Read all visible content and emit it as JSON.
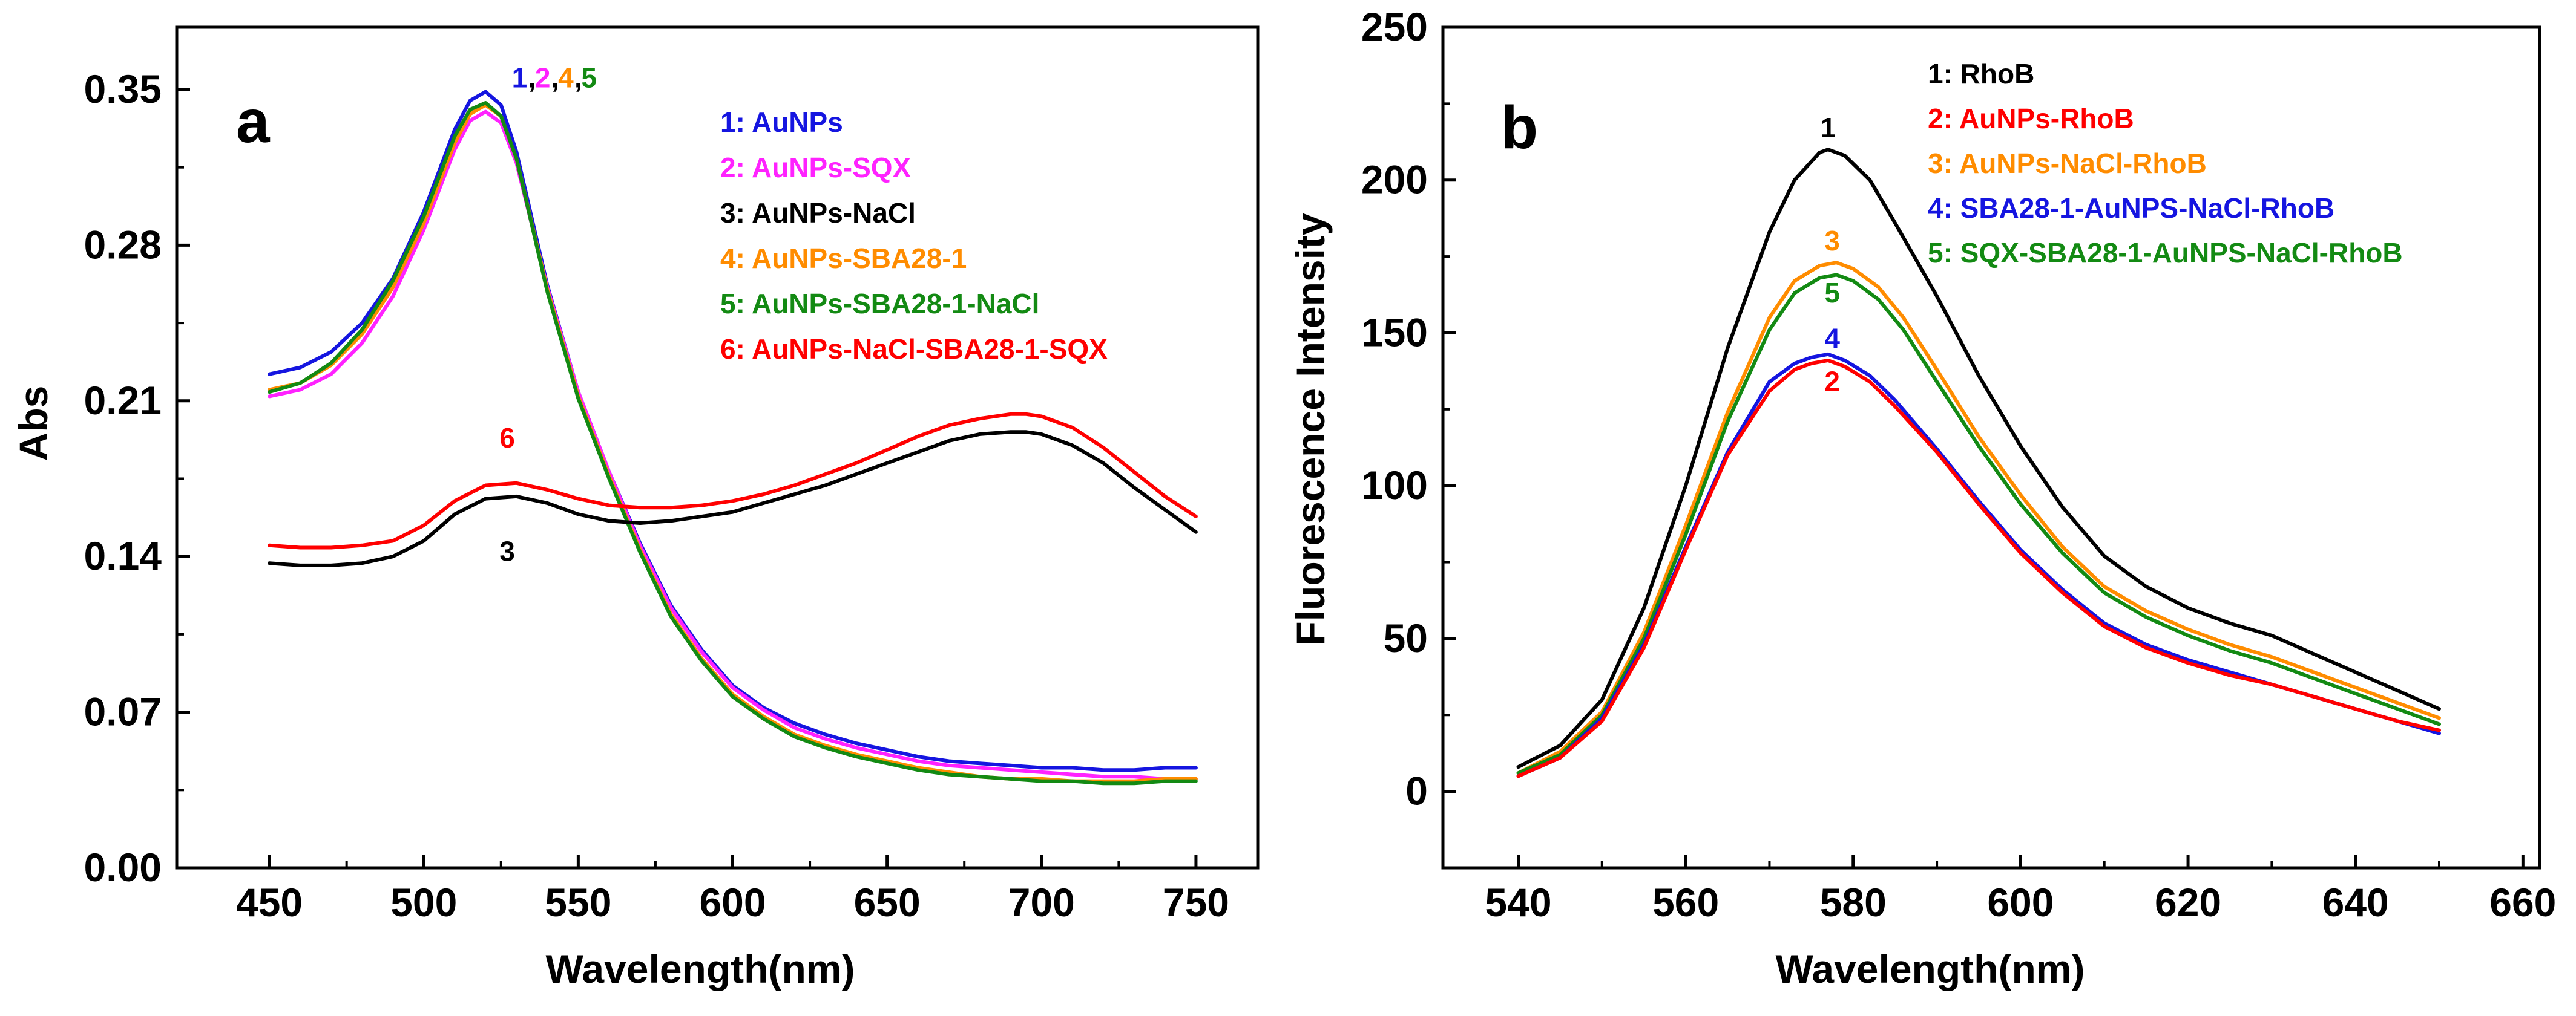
{
  "chart_data": [
    {
      "panel": "a",
      "type": "line",
      "xlabel": "Wavelength(nm)",
      "ylabel": "Abs",
      "xlim": [
        420,
        770
      ],
      "ylim": [
        0.0,
        0.378
      ],
      "xticks": [
        450,
        500,
        550,
        600,
        650,
        700,
        750
      ],
      "yticks": [
        0.0,
        0.07,
        0.14,
        0.21,
        0.28,
        0.35
      ],
      "ytick_labels": [
        "0.00",
        "0.07",
        "0.14",
        "0.21",
        "0.28",
        "0.35"
      ],
      "legend": [
        {
          "text": "1: AuNPs",
          "color": "#1515e0"
        },
        {
          "text": "2: AuNPs-SQX",
          "color": "#ff22ff"
        },
        {
          "text": "3: AuNPs-NaCl",
          "color": "#000000"
        },
        {
          "text": "4: AuNPs-SBA28-1",
          "color": "#ff8c00"
        },
        {
          "text": "5: AuNPs-SBA28-1-NaCl",
          "color": "#138a13"
        },
        {
          "text": "6: AuNPs-NaCl-SBA28-1-SQX",
          "color": "#ff0000"
        }
      ],
      "curve_labels": [
        {
          "text": "1",
          "color": "#1515e0",
          "x": 531,
          "y": 0.351
        },
        {
          "text": ",",
          "color": "#000000",
          "x": 535,
          "y": 0.351
        },
        {
          "text": "2",
          "color": "#ff22ff",
          "x": 538.5,
          "y": 0.351
        },
        {
          "text": ",",
          "color": "#000000",
          "x": 542.5,
          "y": 0.351
        },
        {
          "text": "4",
          "color": "#ff8c00",
          "x": 546,
          "y": 0.351
        },
        {
          "text": ",",
          "color": "#000000",
          "x": 550,
          "y": 0.351
        },
        {
          "text": "5",
          "color": "#138a13",
          "x": 553.5,
          "y": 0.351
        },
        {
          "text": "6",
          "color": "#ff0000",
          "x": 527,
          "y": 0.189
        },
        {
          "text": "3",
          "color": "#000000",
          "x": 527,
          "y": 0.138
        }
      ],
      "series": [
        {
          "name": "1: AuNPs",
          "color": "#1515e0",
          "x": [
            450,
            460,
            470,
            480,
            490,
            500,
            510,
            515,
            520,
            525,
            530,
            540,
            550,
            560,
            570,
            580,
            590,
            600,
            610,
            620,
            630,
            640,
            650,
            660,
            670,
            680,
            690,
            700,
            710,
            720,
            730,
            740,
            750
          ],
          "y": [
            0.222,
            0.225,
            0.232,
            0.245,
            0.265,
            0.295,
            0.332,
            0.345,
            0.349,
            0.343,
            0.322,
            0.262,
            0.214,
            0.178,
            0.146,
            0.118,
            0.098,
            0.082,
            0.072,
            0.065,
            0.06,
            0.056,
            0.053,
            0.05,
            0.048,
            0.047,
            0.046,
            0.045,
            0.045,
            0.044,
            0.044,
            0.045,
            0.045
          ]
        },
        {
          "name": "2: AuNPs-SQX",
          "color": "#ff22ff",
          "x": [
            450,
            460,
            470,
            480,
            490,
            500,
            510,
            515,
            520,
            525,
            530,
            540,
            550,
            560,
            570,
            580,
            590,
            600,
            610,
            620,
            630,
            640,
            650,
            660,
            670,
            680,
            690,
            700,
            710,
            720,
            730,
            740,
            750
          ],
          "y": [
            0.212,
            0.215,
            0.222,
            0.236,
            0.257,
            0.287,
            0.323,
            0.336,
            0.34,
            0.335,
            0.317,
            0.261,
            0.214,
            0.178,
            0.145,
            0.117,
            0.097,
            0.081,
            0.071,
            0.063,
            0.058,
            0.054,
            0.051,
            0.048,
            0.046,
            0.045,
            0.044,
            0.043,
            0.042,
            0.041,
            0.041,
            0.04,
            0.04
          ]
        },
        {
          "name": "4: AuNPs-SBA28-1",
          "color": "#ff8c00",
          "x": [
            450,
            460,
            470,
            480,
            490,
            500,
            510,
            515,
            520,
            525,
            530,
            540,
            550,
            560,
            570,
            580,
            590,
            600,
            610,
            620,
            630,
            640,
            650,
            660,
            670,
            680,
            690,
            700,
            710,
            720,
            730,
            740,
            750
          ],
          "y": [
            0.215,
            0.218,
            0.226,
            0.24,
            0.261,
            0.29,
            0.326,
            0.339,
            0.343,
            0.338,
            0.319,
            0.26,
            0.212,
            0.176,
            0.143,
            0.114,
            0.094,
            0.078,
            0.068,
            0.06,
            0.055,
            0.051,
            0.048,
            0.045,
            0.043,
            0.041,
            0.04,
            0.04,
            0.039,
            0.039,
            0.039,
            0.04,
            0.04
          ]
        },
        {
          "name": "5: AuNPs-SBA28-1-NaCl",
          "color": "#138a13",
          "x": [
            450,
            460,
            470,
            480,
            490,
            500,
            510,
            515,
            520,
            525,
            530,
            540,
            550,
            560,
            570,
            580,
            590,
            600,
            610,
            620,
            630,
            640,
            650,
            660,
            670,
            680,
            690,
            700,
            710,
            720,
            730,
            740,
            750
          ],
          "y": [
            0.214,
            0.218,
            0.227,
            0.242,
            0.264,
            0.293,
            0.329,
            0.341,
            0.344,
            0.338,
            0.319,
            0.259,
            0.211,
            0.175,
            0.142,
            0.113,
            0.093,
            0.077,
            0.067,
            0.059,
            0.054,
            0.05,
            0.047,
            0.044,
            0.042,
            0.041,
            0.04,
            0.039,
            0.039,
            0.038,
            0.038,
            0.039,
            0.039
          ]
        },
        {
          "name": "6: AuNPs-NaCl-SBA28-1-SQX",
          "color": "#ff0000",
          "x": [
            450,
            460,
            470,
            480,
            490,
            500,
            510,
            520,
            530,
            540,
            550,
            560,
            570,
            580,
            590,
            600,
            610,
            620,
            630,
            640,
            650,
            660,
            670,
            680,
            690,
            695,
            700,
            710,
            720,
            730,
            740,
            750
          ],
          "y": [
            0.145,
            0.144,
            0.144,
            0.145,
            0.147,
            0.154,
            0.165,
            0.172,
            0.173,
            0.17,
            0.166,
            0.163,
            0.162,
            0.162,
            0.163,
            0.165,
            0.168,
            0.172,
            0.177,
            0.182,
            0.188,
            0.194,
            0.199,
            0.202,
            0.204,
            0.204,
            0.203,
            0.198,
            0.189,
            0.178,
            0.167,
            0.158
          ]
        },
        {
          "name": "3: AuNPs-NaCl",
          "color": "#000000",
          "x": [
            450,
            460,
            470,
            480,
            490,
            500,
            510,
            520,
            530,
            540,
            550,
            560,
            570,
            580,
            590,
            600,
            610,
            620,
            630,
            640,
            650,
            660,
            670,
            680,
            690,
            695,
            700,
            710,
            720,
            730,
            740,
            750
          ],
          "y": [
            0.137,
            0.136,
            0.136,
            0.137,
            0.14,
            0.147,
            0.159,
            0.166,
            0.167,
            0.164,
            0.159,
            0.156,
            0.155,
            0.156,
            0.158,
            0.16,
            0.164,
            0.168,
            0.172,
            0.177,
            0.182,
            0.187,
            0.192,
            0.195,
            0.196,
            0.196,
            0.195,
            0.19,
            0.182,
            0.171,
            0.161,
            0.151
          ]
        }
      ]
    },
    {
      "panel": "b",
      "type": "line",
      "xlabel": "Wavelength(nm)",
      "ylabel": "Fluorescence Intensity",
      "xlim": [
        531,
        662
      ],
      "ylim": [
        -25,
        250
      ],
      "xticks": [
        540,
        560,
        580,
        600,
        620,
        640,
        660
      ],
      "yticks": [
        0,
        50,
        100,
        150,
        200,
        250
      ],
      "legend": [
        {
          "text": "1: RhoB",
          "color": "#000000"
        },
        {
          "text": "2: AuNPs-RhoB",
          "color": "#ff0000"
        },
        {
          "text": "3: AuNPs-NaCl-RhoB",
          "color": "#ff8c00"
        },
        {
          "text": "4: SBA28-1-AuNPS-NaCl-RhoB",
          "color": "#1515e0"
        },
        {
          "text": "5: SQX-SBA28-1-AuNPS-NaCl-RhoB",
          "color": "#138a13"
        }
      ],
      "curve_labels": [
        {
          "text": "1",
          "color": "#000000",
          "x": 577,
          "y": 214
        },
        {
          "text": "3",
          "color": "#ff8c00",
          "x": 577.5,
          "y": 177
        },
        {
          "text": "5",
          "color": "#138a13",
          "x": 577.5,
          "y": 160
        },
        {
          "text": "4",
          "color": "#1515e0",
          "x": 577.5,
          "y": 145
        },
        {
          "text": "2",
          "color": "#ff0000",
          "x": 577.5,
          "y": 131
        }
      ],
      "series": [
        {
          "name": "1: RhoB",
          "color": "#000000",
          "x": [
            540,
            545,
            550,
            555,
            560,
            565,
            570,
            573,
            576,
            577,
            579,
            582,
            585,
            590,
            595,
            600,
            605,
            610,
            615,
            620,
            625,
            630,
            635,
            640,
            645,
            650
          ],
          "y": [
            8,
            15,
            30,
            60,
            100,
            145,
            183,
            200,
            209,
            210,
            208,
            200,
            186,
            162,
            136,
            113,
            93,
            77,
            67,
            60,
            55,
            51,
            45,
            39,
            33,
            27
          ]
        },
        {
          "name": "3: AuNPs-NaCl-RhoB",
          "color": "#ff8c00",
          "x": [
            540,
            545,
            550,
            555,
            560,
            565,
            570,
            573,
            576,
            578,
            580,
            583,
            586,
            590,
            595,
            600,
            605,
            610,
            615,
            620,
            625,
            630,
            635,
            640,
            645,
            650
          ],
          "y": [
            6,
            13,
            26,
            52,
            87,
            124,
            155,
            167,
            172,
            173,
            171,
            165,
            155,
            138,
            116,
            97,
            80,
            67,
            59,
            53,
            48,
            44,
            39,
            34,
            29,
            24
          ]
        },
        {
          "name": "5: SQX-SBA28-1-AuNPS-NaCl-RhoB",
          "color": "#138a13",
          "x": [
            540,
            545,
            550,
            555,
            560,
            565,
            570,
            573,
            576,
            578,
            580,
            583,
            586,
            590,
            595,
            600,
            605,
            610,
            615,
            620,
            625,
            630,
            635,
            640,
            645,
            650
          ],
          "y": [
            6,
            12,
            25,
            50,
            84,
            121,
            151,
            163,
            168,
            169,
            167,
            161,
            151,
            134,
            113,
            94,
            78,
            65,
            57,
            51,
            46,
            42,
            37,
            32,
            27,
            22
          ]
        },
        {
          "name": "4: SBA28-1-AuNPS-NaCl-RhoB",
          "color": "#1515e0",
          "x": [
            540,
            545,
            550,
            555,
            560,
            565,
            570,
            573,
            575,
            577,
            579,
            582,
            585,
            590,
            595,
            600,
            605,
            610,
            615,
            620,
            625,
            630,
            635,
            640,
            645,
            650
          ],
          "y": [
            5,
            11,
            24,
            48,
            80,
            111,
            134,
            140,
            142,
            143,
            141,
            136,
            128,
            112,
            95,
            79,
            66,
            55,
            48,
            43,
            39,
            35,
            31,
            27,
            23,
            19
          ]
        },
        {
          "name": "2: AuNPs-RhoB",
          "color": "#ff0000",
          "x": [
            540,
            545,
            550,
            555,
            560,
            565,
            570,
            573,
            575,
            577,
            579,
            582,
            585,
            590,
            595,
            600,
            605,
            610,
            615,
            620,
            625,
            630,
            635,
            640,
            645,
            650
          ],
          "y": [
            5,
            11,
            23,
            47,
            79,
            110,
            131,
            138,
            140,
            141,
            139,
            134,
            126,
            111,
            94,
            78,
            65,
            54,
            47,
            42,
            38,
            35,
            31,
            27,
            23,
            20
          ]
        }
      ]
    }
  ]
}
